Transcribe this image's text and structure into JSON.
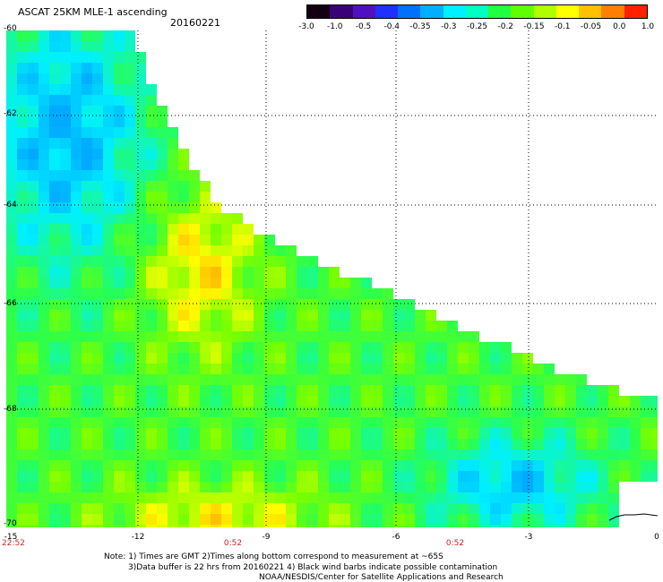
{
  "header": {
    "title": "ASCAT 25KM MLE-1 ascending",
    "date": "20160221"
  },
  "colorbar": {
    "labels": [
      "-3.0",
      "-1.0",
      "-0.5",
      "-0.4",
      "-0.35",
      "-0.3",
      "-0.25",
      "-0.2",
      "-0.15",
      "-0.1",
      "-0.05",
      "0.0",
      "1.0"
    ],
    "colors": [
      "#120010",
      "#3a0078",
      "#5010c0",
      "#2030ff",
      "#0070ff",
      "#00b0ff",
      "#00f0ff",
      "#00ffc0",
      "#20ff40",
      "#60ff00",
      "#b0ff00",
      "#ffff00",
      "#ffc000",
      "#ff8000",
      "#ff2000"
    ]
  },
  "map": {
    "lat_labels": [
      "-60",
      "-62",
      "-64",
      "-66",
      "-68",
      "-70"
    ],
    "lon_labels": [
      "-15",
      "-12",
      "-9",
      "-6",
      "-3",
      "0"
    ],
    "times": [
      "22:52",
      "0:52",
      "0:52"
    ]
  },
  "notes": {
    "line1": "Note: 1) Times are GMT 2)Times along bottom correspond to measurement at ~65S",
    "line2": "3)Data buffer is 22 hrs from 20160221 4) Black wind barbs indicate possible contamination",
    "line3": "NOAA/NESDIS/Center for Satellite Applications and Research"
  }
}
